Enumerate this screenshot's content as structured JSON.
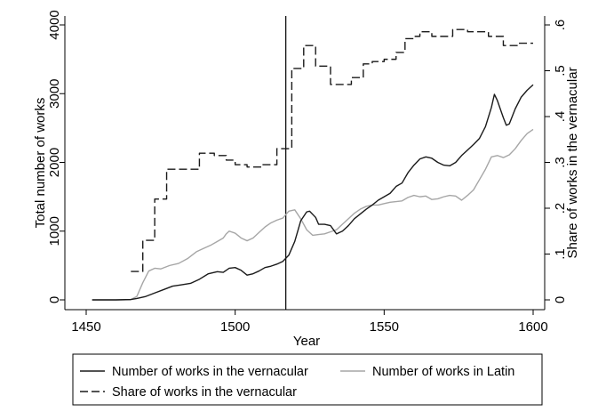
{
  "chart_data": {
    "type": "line",
    "xlabel": "Year",
    "ylabel_left": "Total number of works",
    "ylabel_right": "Share of works in the vernacular",
    "xlim": [
      1450,
      1600
    ],
    "ylim_left": [
      0,
      4000
    ],
    "ylim_right": [
      0,
      0.6
    ],
    "x_ticks": [
      "1450",
      "1500",
      "1550",
      "1600"
    ],
    "y_left_ticks": [
      "0",
      "1000",
      "2000",
      "3000",
      "4000"
    ],
    "y_right_ticks": [
      "0",
      ".1",
      ".2",
      ".3",
      ".4",
      ".5",
      ".6"
    ],
    "vertical_line_x": 1517,
    "grid": false,
    "legend_position": "bottom",
    "series": [
      {
        "name": "Number of works in the vernacular",
        "axis": "left",
        "style": "solid",
        "color": "#1a1a1a",
        "points": [
          [
            1452,
            0
          ],
          [
            1460,
            0
          ],
          [
            1465,
            5
          ],
          [
            1467,
            20
          ],
          [
            1470,
            50
          ],
          [
            1473,
            100
          ],
          [
            1476,
            150
          ],
          [
            1479,
            200
          ],
          [
            1482,
            220
          ],
          [
            1485,
            240
          ],
          [
            1488,
            300
          ],
          [
            1491,
            380
          ],
          [
            1494,
            410
          ],
          [
            1496,
            400
          ],
          [
            1498,
            460
          ],
          [
            1500,
            470
          ],
          [
            1502,
            430
          ],
          [
            1504,
            360
          ],
          [
            1506,
            380
          ],
          [
            1508,
            420
          ],
          [
            1510,
            470
          ],
          [
            1512,
            490
          ],
          [
            1514,
            520
          ],
          [
            1516,
            560
          ],
          [
            1518,
            650
          ],
          [
            1520,
            850
          ],
          [
            1522,
            1150
          ],
          [
            1524,
            1280
          ],
          [
            1525,
            1290
          ],
          [
            1527,
            1200
          ],
          [
            1528,
            1100
          ],
          [
            1530,
            1100
          ],
          [
            1532,
            1080
          ],
          [
            1534,
            960
          ],
          [
            1536,
            1000
          ],
          [
            1538,
            1080
          ],
          [
            1540,
            1180
          ],
          [
            1542,
            1250
          ],
          [
            1544,
            1320
          ],
          [
            1546,
            1380
          ],
          [
            1548,
            1450
          ],
          [
            1550,
            1500
          ],
          [
            1552,
            1550
          ],
          [
            1554,
            1650
          ],
          [
            1556,
            1700
          ],
          [
            1558,
            1850
          ],
          [
            1560,
            1960
          ],
          [
            1562,
            2050
          ],
          [
            1564,
            2080
          ],
          [
            1566,
            2060
          ],
          [
            1568,
            2000
          ],
          [
            1570,
            1960
          ],
          [
            1572,
            1950
          ],
          [
            1574,
            2000
          ],
          [
            1576,
            2100
          ],
          [
            1578,
            2180
          ],
          [
            1580,
            2260
          ],
          [
            1582,
            2350
          ],
          [
            1584,
            2520
          ],
          [
            1586,
            2800
          ],
          [
            1587,
            2990
          ],
          [
            1588,
            2900
          ],
          [
            1590,
            2650
          ],
          [
            1591,
            2540
          ],
          [
            1592,
            2560
          ],
          [
            1594,
            2780
          ],
          [
            1596,
            2950
          ],
          [
            1598,
            3050
          ],
          [
            1600,
            3130
          ]
        ]
      },
      {
        "name": "Number of works in Latin",
        "axis": "left",
        "style": "solid",
        "color": "#a6a6a6",
        "points": [
          [
            1452,
            0
          ],
          [
            1460,
            0
          ],
          [
            1465,
            5
          ],
          [
            1467,
            50
          ],
          [
            1469,
            250
          ],
          [
            1471,
            420
          ],
          [
            1473,
            460
          ],
          [
            1475,
            450
          ],
          [
            1478,
            500
          ],
          [
            1481,
            530
          ],
          [
            1484,
            600
          ],
          [
            1487,
            700
          ],
          [
            1490,
            760
          ],
          [
            1492,
            800
          ],
          [
            1494,
            850
          ],
          [
            1496,
            900
          ],
          [
            1497,
            960
          ],
          [
            1498,
            1000
          ],
          [
            1500,
            970
          ],
          [
            1502,
            900
          ],
          [
            1504,
            860
          ],
          [
            1506,
            900
          ],
          [
            1508,
            980
          ],
          [
            1510,
            1060
          ],
          [
            1512,
            1120
          ],
          [
            1514,
            1160
          ],
          [
            1516,
            1190
          ],
          [
            1518,
            1290
          ],
          [
            1520,
            1310
          ],
          [
            1522,
            1180
          ],
          [
            1524,
            1020
          ],
          [
            1526,
            940
          ],
          [
            1528,
            950
          ],
          [
            1530,
            960
          ],
          [
            1532,
            990
          ],
          [
            1534,
            1020
          ],
          [
            1536,
            1100
          ],
          [
            1538,
            1180
          ],
          [
            1540,
            1260
          ],
          [
            1542,
            1320
          ],
          [
            1544,
            1360
          ],
          [
            1546,
            1380
          ],
          [
            1548,
            1380
          ],
          [
            1550,
            1400
          ],
          [
            1552,
            1420
          ],
          [
            1554,
            1430
          ],
          [
            1556,
            1440
          ],
          [
            1558,
            1490
          ],
          [
            1560,
            1520
          ],
          [
            1562,
            1500
          ],
          [
            1564,
            1510
          ],
          [
            1566,
            1460
          ],
          [
            1568,
            1470
          ],
          [
            1570,
            1500
          ],
          [
            1572,
            1520
          ],
          [
            1574,
            1510
          ],
          [
            1576,
            1450
          ],
          [
            1578,
            1520
          ],
          [
            1580,
            1600
          ],
          [
            1582,
            1750
          ],
          [
            1584,
            1900
          ],
          [
            1586,
            2080
          ],
          [
            1588,
            2100
          ],
          [
            1590,
            2070
          ],
          [
            1592,
            2110
          ],
          [
            1594,
            2200
          ],
          [
            1596,
            2320
          ],
          [
            1598,
            2420
          ],
          [
            1600,
            2480
          ]
        ]
      },
      {
        "name": "Share of works in the vernacular",
        "axis": "right",
        "style": "dashed-step",
        "color": "#1a1a1a",
        "points": [
          [
            1465,
            0.062
          ],
          [
            1469,
            0.13
          ],
          [
            1473,
            0.22
          ],
          [
            1477,
            0.285
          ],
          [
            1488,
            0.32
          ],
          [
            1493,
            0.315
          ],
          [
            1497,
            0.305
          ],
          [
            1500,
            0.295
          ],
          [
            1504,
            0.29
          ],
          [
            1509,
            0.295
          ],
          [
            1514,
            0.33
          ],
          [
            1517,
            0.33
          ],
          [
            1519,
            0.505
          ],
          [
            1523,
            0.555
          ],
          [
            1527,
            0.51
          ],
          [
            1532,
            0.47
          ],
          [
            1536,
            0.47
          ],
          [
            1539,
            0.485
          ],
          [
            1543,
            0.515
          ],
          [
            1546,
            0.52
          ],
          [
            1550,
            0.525
          ],
          [
            1554,
            0.54
          ],
          [
            1557,
            0.57
          ],
          [
            1560,
            0.575
          ],
          [
            1562,
            0.585
          ],
          [
            1566,
            0.575
          ],
          [
            1569,
            0.575
          ],
          [
            1573,
            0.59
          ],
          [
            1578,
            0.585
          ],
          [
            1585,
            0.575
          ],
          [
            1590,
            0.555
          ],
          [
            1595,
            0.56
          ],
          [
            1600,
            0.56
          ]
        ]
      }
    ]
  }
}
